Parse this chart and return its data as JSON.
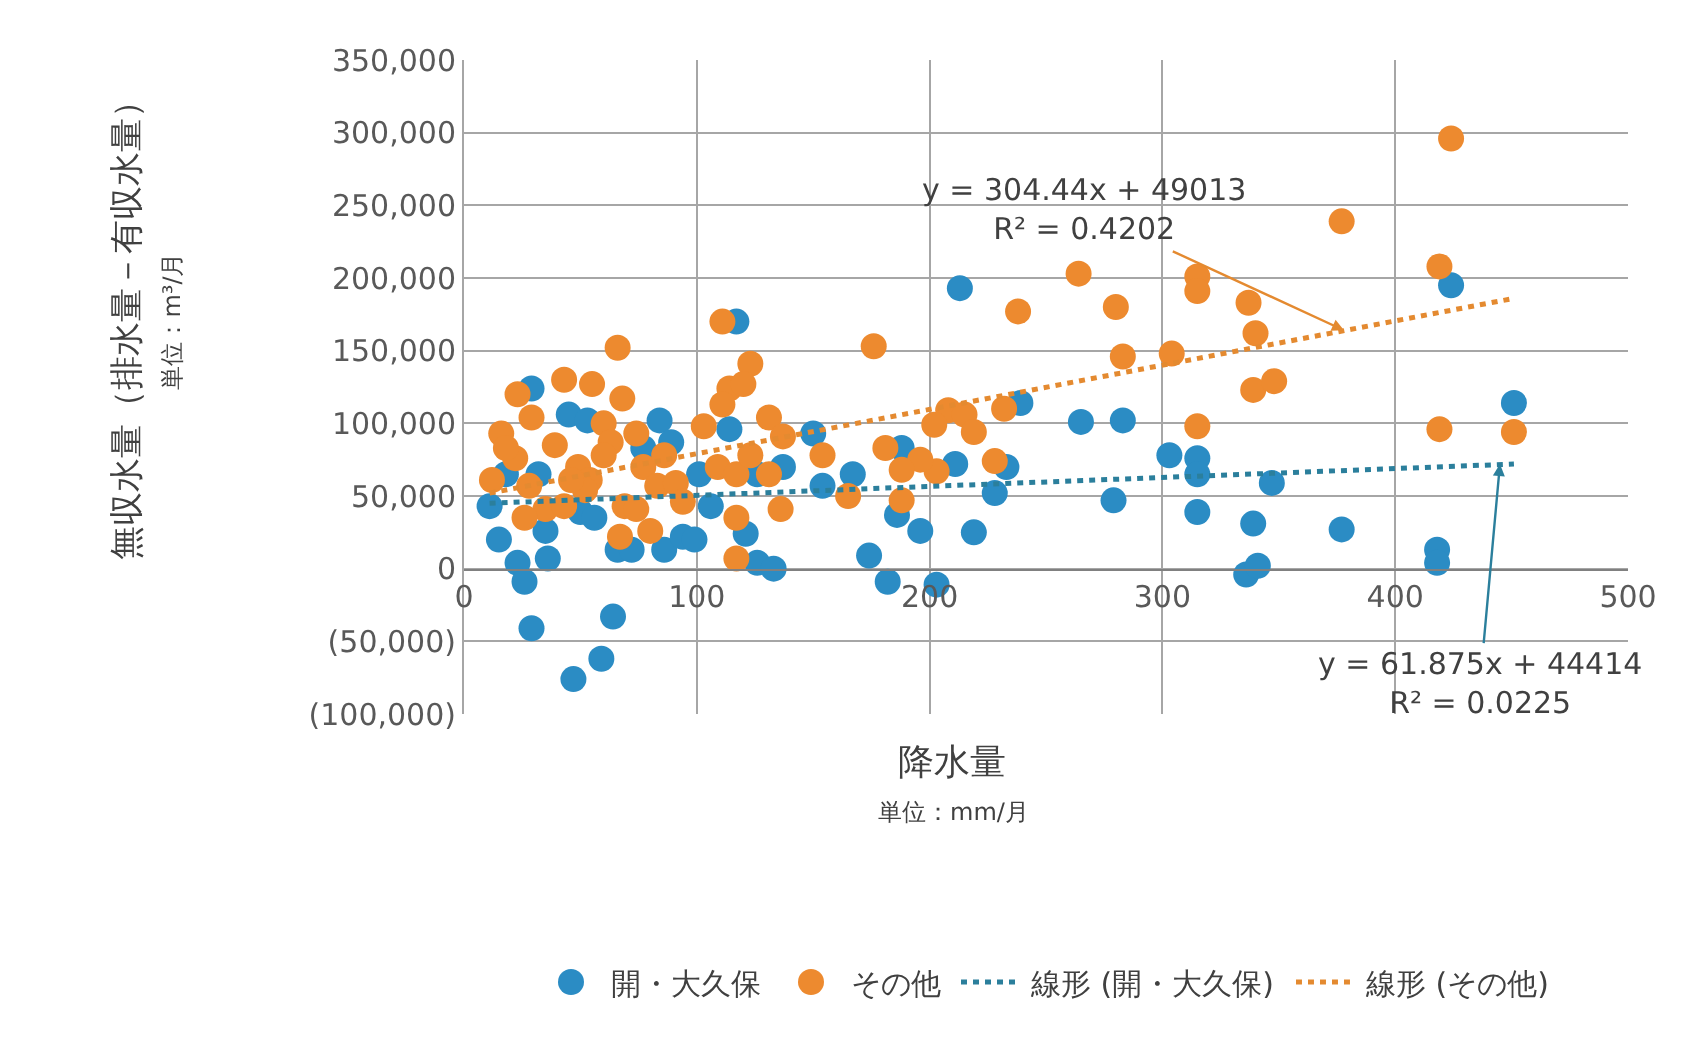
{
  "chart_data": {
    "type": "scatter",
    "ylabel": "無収水量（排水量－有収水量）",
    "xlabel": "降水量",
    "xlim": [
      0,
      500
    ],
    "xticks": [
      0,
      100,
      200,
      300,
      400,
      500
    ],
    "ylim": [
      -100000,
      350000
    ],
    "yticks": [
      {
        "value": -100000,
        "label": "(100,000)"
      },
      {
        "value": -50000,
        "label": "(50,000)"
      },
      0,
      {
        "value": 50000,
        "label": "50,000"
      },
      {
        "value": 100000,
        "label": "100,000"
      },
      {
        "value": 150000,
        "label": "150,000"
      },
      {
        "value": 200000,
        "label": "200,000"
      },
      {
        "value": 250000,
        "label": "250,000"
      },
      {
        "value": 300000,
        "label": "300,000"
      },
      {
        "value": 350000,
        "label": "350,000"
      }
    ],
    "grid": true,
    "legend": "bottom",
    "series": [
      {
        "name": "開・大久保",
        "marker": "circle",
        "color": "#2b8cc4",
        "x": [
          29,
          45,
          53,
          84,
          89,
          117,
          11,
          15,
          23,
          26,
          36,
          29,
          64,
          47,
          59,
          66,
          72,
          86,
          94,
          99,
          106,
          121,
          126,
          133,
          137,
          154,
          167,
          174,
          182,
          150,
          32,
          50,
          56,
          77,
          126,
          101,
          114,
          18,
          35,
          213,
          239,
          265,
          283,
          303,
          315,
          315,
          347,
          315,
          339,
          336,
          341,
          377,
          418,
          418,
          424,
          451,
          279,
          228,
          233,
          211,
          219,
          196,
          186,
          203,
          188
        ],
        "values": [
          124000,
          106000,
          102000,
          102000,
          87000,
          170000,
          43000,
          20000,
          4000,
          -9000,
          7000,
          -41000,
          -33000,
          -76000,
          -62000,
          13000,
          13000,
          13000,
          22000,
          20000,
          43000,
          24000,
          4000,
          0,
          70000,
          57000,
          65000,
          9000,
          -9000,
          93000,
          65000,
          39000,
          35000,
          83000,
          65000,
          65000,
          96000,
          65000,
          26000,
          193000,
          114000,
          101000,
          102000,
          78000,
          76000,
          65000,
          59000,
          39000,
          31000,
          -4000,
          2000,
          27000,
          13000,
          4000,
          195000,
          114000,
          47000,
          52000,
          70000,
          72000,
          25000,
          26000,
          37000,
          -11000,
          83000
        ]
      },
      {
        "name": "その他",
        "marker": "circle",
        "color": "#ed8a2f",
        "x": [
          424,
          377,
          419,
          264,
          315,
          315,
          238,
          280,
          337,
          340,
          283,
          304,
          339,
          348,
          232,
          208,
          215,
          219,
          202,
          315,
          419,
          451,
          228,
          203,
          196,
          188,
          181,
          188,
          176,
          111,
          66,
          123,
          43,
          55,
          23,
          68,
          114,
          120,
          111,
          131,
          16,
          29,
          103,
          60,
          63,
          74,
          77,
          86,
          22,
          39,
          49,
          54,
          12,
          28,
          35,
          26,
          43,
          52,
          69,
          74,
          80,
          67,
          83,
          91,
          109,
          117,
          123,
          137,
          131,
          136,
          117,
          117,
          154,
          165,
          60,
          94,
          46,
          18
        ],
        "values": [
          296000,
          239000,
          208000,
          203000,
          201000,
          191000,
          177000,
          180000,
          183000,
          162000,
          146000,
          148000,
          123000,
          129000,
          110000,
          109000,
          106000,
          94000,
          99000,
          98000,
          96000,
          94000,
          74000,
          67000,
          75000,
          68000,
          83000,
          47000,
          153000,
          170000,
          152000,
          141000,
          130000,
          127000,
          120000,
          117000,
          124000,
          127000,
          113000,
          104000,
          93000,
          104000,
          98000,
          100000,
          87000,
          93000,
          70000,
          78000,
          76000,
          85000,
          70000,
          61000,
          61000,
          57000,
          41000,
          35000,
          43000,
          54000,
          43000,
          41000,
          26000,
          22000,
          57000,
          59000,
          70000,
          65000,
          78000,
          91000,
          65000,
          41000,
          35000,
          7000,
          78000,
          50000,
          78000,
          46000,
          61000,
          83000
        ]
      },
      {
        "name": "線形 (開・大久保)",
        "type": "line",
        "line_style": "dotted",
        "color": "#2b7f9c",
        "x": [
          11,
          451
        ],
        "values": [
          45000,
          72000
        ]
      },
      {
        "name": "線形 (その他)",
        "type": "line",
        "line_style": "dotted",
        "color": "#e48a30",
        "x": [
          11,
          451
        ],
        "values": [
          52000,
          186000
        ]
      }
    ],
    "annotations": [
      {
        "text": "y = 304.44x + 49013\nR² = 0.4202",
        "x": 378,
        "y": 164000
      },
      {
        "text": "y = 61.875x + 44414\nR² = 0.0225",
        "x": 445,
        "y": 72000
      },
      "単位：m³/月",
      "単位：mm/月"
    ]
  }
}
